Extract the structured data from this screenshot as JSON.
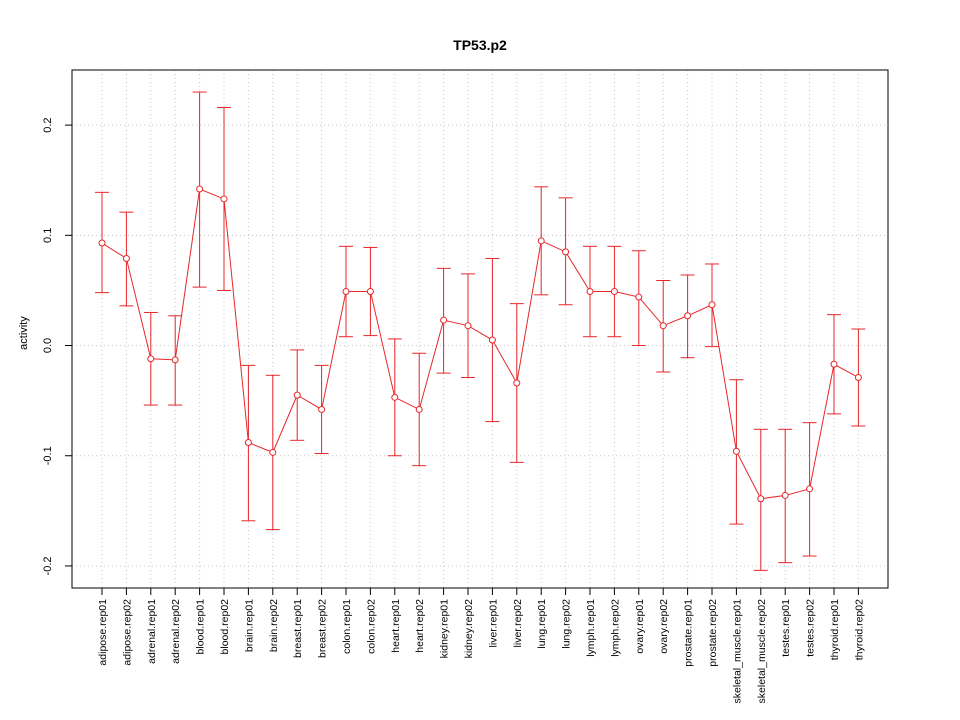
{
  "chart_data": {
    "type": "line",
    "title": "TP53.p2",
    "xlabel": "",
    "ylabel": "activity",
    "ylim": [
      -0.22,
      0.25
    ],
    "yticks": [
      -0.2,
      -0.1,
      0.0,
      0.1,
      0.2
    ],
    "ytick_labels": [
      "-0.2",
      "-0.1",
      "0.0",
      "0.1",
      "0.2"
    ],
    "grid": true,
    "line_color": "#e8262a",
    "grid_color": "#c8c8c8",
    "categories": [
      "adipose.rep01",
      "adipose.rep02",
      "adrenal.rep01",
      "adrenal.rep02",
      "blood.rep01",
      "blood.rep02",
      "brain.rep01",
      "brain.rep02",
      "breast.rep01",
      "breast.rep02",
      "colon.rep01",
      "colon.rep02",
      "heart.rep01",
      "heart.rep02",
      "kidney.rep01",
      "kidney.rep02",
      "liver.rep01",
      "liver.rep02",
      "lung.rep01",
      "lung.rep02",
      "lymph.rep01",
      "lymph.rep02",
      "ovary.rep01",
      "ovary.rep02",
      "prostate.rep01",
      "prostate.rep02",
      "skeletal_muscle.rep01",
      "skeletal_muscle.rep02",
      "testes.rep01",
      "testes.rep02",
      "thyroid.rep01",
      "thyroid.rep02"
    ],
    "series": [
      {
        "name": "activity",
        "values": [
          0.093,
          0.079,
          -0.012,
          -0.013,
          0.142,
          0.133,
          -0.088,
          -0.097,
          -0.045,
          -0.058,
          0.049,
          0.049,
          -0.047,
          -0.058,
          0.023,
          0.018,
          0.005,
          -0.034,
          0.095,
          0.085,
          0.049,
          0.049,
          0.044,
          0.018,
          0.027,
          0.037,
          -0.096,
          -0.139,
          -0.136,
          -0.13,
          -0.017,
          -0.029
        ],
        "upper": [
          0.139,
          0.121,
          0.03,
          0.027,
          0.23,
          0.216,
          -0.018,
          -0.027,
          -0.004,
          -0.018,
          0.09,
          0.089,
          0.006,
          -0.007,
          0.07,
          0.065,
          0.079,
          0.038,
          0.144,
          0.134,
          0.09,
          0.09,
          0.086,
          0.059,
          0.064,
          0.074,
          -0.031,
          -0.076,
          -0.076,
          -0.07,
          0.028,
          0.015
        ],
        "lower": [
          0.048,
          0.036,
          -0.054,
          -0.054,
          0.053,
          0.05,
          -0.159,
          -0.167,
          -0.086,
          -0.098,
          0.008,
          0.009,
          -0.1,
          -0.109,
          -0.025,
          -0.029,
          -0.069,
          -0.106,
          0.046,
          0.037,
          0.008,
          0.008,
          0.0,
          -0.024,
          -0.011,
          -0.001,
          -0.162,
          -0.204,
          -0.197,
          -0.191,
          -0.062,
          -0.073
        ]
      }
    ]
  }
}
